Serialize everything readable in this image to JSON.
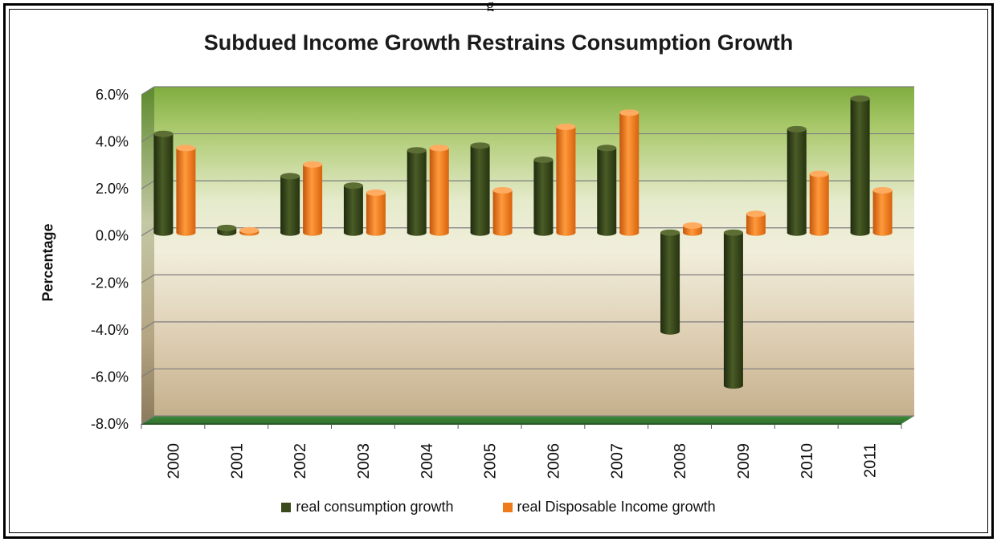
{
  "header_fragment": "g",
  "chart_data": {
    "type": "bar",
    "title": "Subdued Income Growth Restrains Consumption Growth",
    "xlabel": "",
    "ylabel": "Percentage",
    "categories": [
      "2000",
      "2001",
      "2002",
      "2003",
      "2004",
      "2005",
      "2006",
      "2007",
      "2008",
      "2009",
      "2010",
      "2011"
    ],
    "series": [
      {
        "name": "real consumption  growth",
        "color": "#3b4a1c",
        "values": [
          4.2,
          0.2,
          2.4,
          2.0,
          3.5,
          3.7,
          3.1,
          3.6,
          -4.2,
          -6.5,
          4.4,
          5.7
        ]
      },
      {
        "name": "real Disposable  Income growth",
        "color": "#ee7a1a",
        "values": [
          3.6,
          0.1,
          2.9,
          1.7,
          3.6,
          1.8,
          4.5,
          5.1,
          0.3,
          0.8,
          2.5,
          1.8
        ]
      }
    ],
    "ylim": [
      -8,
      6
    ],
    "yticks": [
      6,
      4,
      2,
      0,
      -2,
      -4,
      -6,
      -8
    ],
    "ytick_labels": [
      "6.0%",
      "4.0%",
      "2.0%",
      "0.0%",
      "-2.0%",
      "-4.0%",
      "-6.0%",
      "-8.0%"
    ],
    "grid": true,
    "legend_position": "bottom"
  }
}
